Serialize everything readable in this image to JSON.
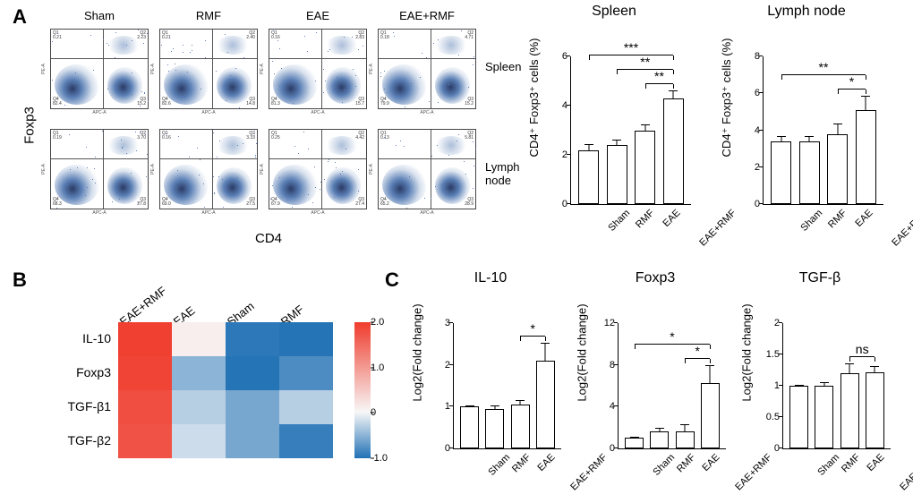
{
  "panel_labels": {
    "A": "A",
    "B": "B",
    "C": "C"
  },
  "colors": {
    "scatter_dot": "#5a7fb5",
    "scatter_dot_dark": "#2b3b66",
    "bar_fill": "#ffffff",
    "bar_stroke": "#000000",
    "axis": "#000000",
    "heat_max": "#ef3b2c",
    "heat_mid": "#f7f7f7",
    "heat_min": "#2171b5",
    "text": "#000000"
  },
  "fonts": {
    "axis_label_pt": 13,
    "tick_pt": 11,
    "title_pt": 16,
    "panel_label_pt": 22
  },
  "panelA": {
    "y_axis_outer": "Foxp3",
    "x_axis_outer": "CD4",
    "column_headers": [
      "Sham",
      "RMF",
      "EAE",
      "EAE+RMF"
    ],
    "row_headers": [
      "Spleen",
      "Lymph node"
    ],
    "scatter": {
      "inner_xlabel": "APC-A",
      "inner_ylabel": "PE-A",
      "x_ticks": [
        "10^0",
        "10^3",
        "10^4",
        "10^5",
        "10^6",
        "10^7"
      ],
      "y_ticks": [
        "10^0",
        "10^3",
        "10^4",
        "10^5",
        "10^6",
        "10^7"
      ],
      "quadrants": [
        [
          {
            "Q1": "0.21",
            "Q2": "2.23",
            "Q3": "15.2",
            "Q4": "82.4"
          },
          {
            "Q1": "0.21",
            "Q2": "2.40",
            "Q3": "14.8",
            "Q4": "82.6"
          },
          {
            "Q1": "0.16",
            "Q2": "2.83",
            "Q3": "15.7",
            "Q4": "81.3"
          },
          {
            "Q1": "0.18",
            "Q2": "4.71",
            "Q3": "15.2",
            "Q4": "79.9"
          }
        ],
        [
          {
            "Q1": "0.19",
            "Q2": "3.70",
            "Q3": "27.8",
            "Q4": "68.3"
          },
          {
            "Q1": "0.16",
            "Q2": "3.33",
            "Q3": "27.5",
            "Q4": "69.0"
          },
          {
            "Q1": "0.25",
            "Q2": "4.42",
            "Q3": "27.4",
            "Q4": "67.9"
          },
          {
            "Q1": "0.13",
            "Q2": "5.81",
            "Q3": "28.9",
            "Q4": "65.2"
          }
        ]
      ]
    },
    "bar_spleen": {
      "title": "Spleen",
      "ylabel": "CD4⁺ Foxp3⁺ cells (%)",
      "ylim": [
        0,
        6
      ],
      "ytick_step": 2,
      "categories": [
        "Sham",
        "RMF",
        "EAE",
        "EAE+RMF"
      ],
      "values": [
        2.2,
        2.4,
        3.0,
        4.3
      ],
      "errors": [
        0.2,
        0.2,
        0.2,
        0.3
      ],
      "sig": [
        {
          "from": 0,
          "to": 3,
          "label": "***",
          "level": 2
        },
        {
          "from": 1,
          "to": 3,
          "label": "**",
          "level": 1
        },
        {
          "from": 2,
          "to": 3,
          "label": "**",
          "level": 0
        }
      ]
    },
    "bar_lymph": {
      "title": "Lymph node",
      "ylabel": "CD4⁺ Foxp3⁺ cells (%)",
      "ylim": [
        0,
        8
      ],
      "ytick_step": 2,
      "categories": [
        "Sham",
        "RMF",
        "EAE",
        "EAE+RMF"
      ],
      "values": [
        3.4,
        3.4,
        3.8,
        5.1
      ],
      "errors": [
        0.25,
        0.25,
        0.5,
        0.7
      ],
      "sig": [
        {
          "from": 0,
          "to": 3,
          "label": "**",
          "level": 1
        },
        {
          "from": 2,
          "to": 3,
          "label": "*",
          "level": 0
        }
      ]
    }
  },
  "panelB": {
    "columns": [
      "EAE+RMF",
      "EAE",
      "Sham",
      "RMF"
    ],
    "rows": [
      "IL-10",
      "Foxp3",
      "TGF-β1",
      "TGF-β2"
    ],
    "values": [
      [
        1.95,
        0.1,
        -0.95,
        -0.98
      ],
      [
        1.9,
        -0.5,
        -0.98,
        -0.8
      ],
      [
        1.8,
        -0.3,
        -0.6,
        -0.3
      ],
      [
        1.75,
        -0.2,
        -0.6,
        -0.9
      ]
    ],
    "scale": {
      "min": -1.0,
      "mid": 0.0,
      "max": 2.0,
      "labels": [
        {
          "v": 2.0,
          "t": "2.0"
        },
        {
          "v": 1.0,
          "t": "1.0"
        },
        {
          "v": 0.0,
          "t": "0"
        },
        {
          "v": -1.0,
          "t": "-1.0"
        }
      ]
    }
  },
  "panelC": {
    "categories": [
      "Sham",
      "RMF",
      "EAE",
      "EAE+RMF"
    ],
    "ylabel": "Log2(Fold change)",
    "plots": [
      {
        "title": "IL-10",
        "ylim": [
          0,
          3
        ],
        "ytick_step": 1,
        "values": [
          1.0,
          0.95,
          1.05,
          2.1
        ],
        "errors": [
          0,
          0.06,
          0.08,
          0.4
        ],
        "sig": [
          {
            "from": 2,
            "to": 3,
            "label": "*",
            "level": 0
          }
        ]
      },
      {
        "title": "Foxp3",
        "ylim": [
          0,
          12
        ],
        "ytick_step": 4,
        "values": [
          1.0,
          1.6,
          1.6,
          6.3
        ],
        "errors": [
          0,
          0.3,
          0.6,
          1.6
        ],
        "sig": [
          {
            "from": 0,
            "to": 3,
            "label": "*",
            "level": 1
          },
          {
            "from": 2,
            "to": 3,
            "label": "*",
            "level": 0
          }
        ]
      },
      {
        "title": "TGF-β",
        "ylim": [
          0,
          2.0
        ],
        "ytick_step": 0.5,
        "values": [
          1.0,
          1.0,
          1.2,
          1.22
        ],
        "errors": [
          0,
          0.05,
          0.14,
          0.08
        ],
        "sig": [
          {
            "from": 2,
            "to": 3,
            "label": "ns",
            "level": 0
          }
        ]
      }
    ]
  }
}
